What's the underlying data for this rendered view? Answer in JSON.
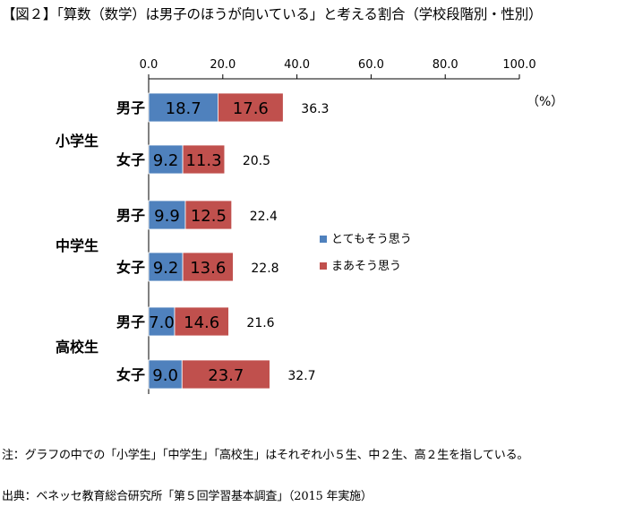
{
  "title": "【図２】「算数（数学）は男子のほうが向いている」と考える割合（学校段階別・性別）",
  "unit_label": "（%）",
  "note": "注：グラフの中での「小学生」「中学生」「高校生」はそれぞれ小５生、中２生、高２生を指している。",
  "source": "出典：ベネッセ教育総合研究所「第５回学習基本調査」（2015 年実施）",
  "chart_data": {
    "type": "bar",
    "orientation": "horizontal",
    "stacked": true,
    "xlim": [
      0,
      100
    ],
    "x_ticks": [
      "0.0",
      "20.0",
      "40.0",
      "60.0",
      "80.0",
      "100.0"
    ],
    "groups": [
      "小学生",
      "中学生",
      "高校生"
    ],
    "categories": [
      {
        "group": "小学生",
        "label": "男子"
      },
      {
        "group": "小学生",
        "label": "女子"
      },
      {
        "group": "中学生",
        "label": "男子"
      },
      {
        "group": "中学生",
        "label": "女子"
      },
      {
        "group": "高校生",
        "label": "男子"
      },
      {
        "group": "高校生",
        "label": "女子"
      }
    ],
    "series": [
      {
        "name": "とてもそう思う",
        "color": "#4f81bd",
        "values": [
          18.7,
          9.2,
          9.9,
          9.2,
          7.0,
          9.0
        ]
      },
      {
        "name": "まあそう思う",
        "color": "#c0504d",
        "values": [
          17.6,
          11.3,
          12.5,
          13.6,
          14.6,
          23.7
        ]
      }
    ],
    "totals": [
      36.3,
      20.5,
      22.4,
      22.8,
      21.6,
      32.7
    ],
    "legend_position": "right",
    "grid": false
  }
}
